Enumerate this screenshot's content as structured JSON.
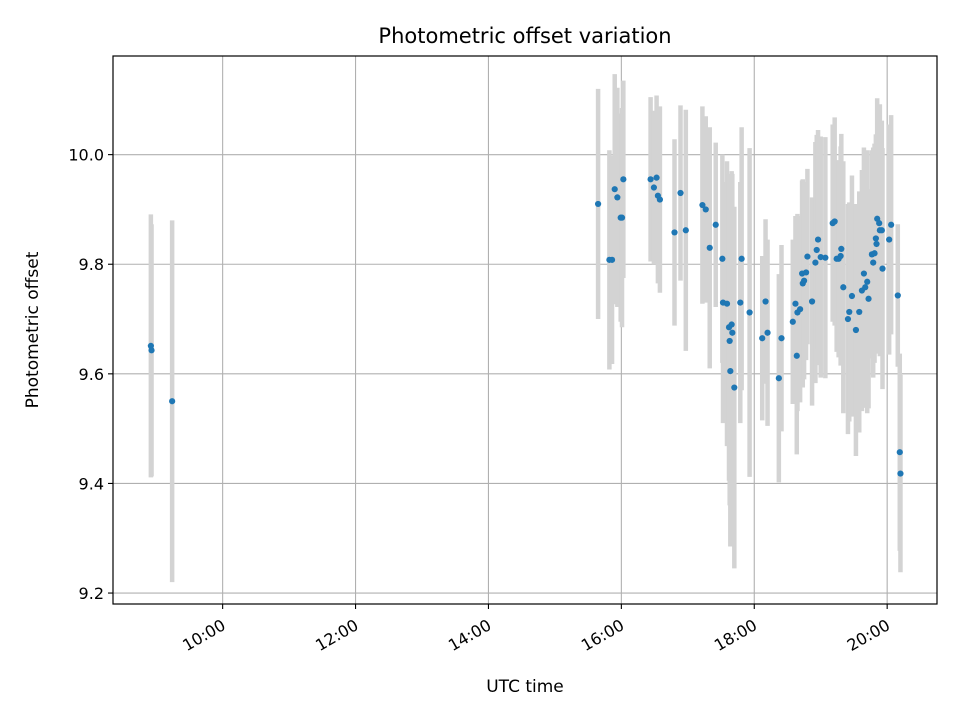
{
  "chart_data": {
    "type": "scatter",
    "title": "Photometric offset variation",
    "xlabel": "UTC time",
    "ylabel": "Photometric offset",
    "x_axis": "time_hours",
    "xlim": [
      8.35,
      20.75
    ],
    "ylim": [
      9.18,
      10.18
    ],
    "x_ticks": [
      10,
      12,
      14,
      16,
      18,
      20
    ],
    "x_tick_labels": [
      "10:00",
      "12:00",
      "14:00",
      "16:00",
      "18:00",
      "20:00"
    ],
    "y_ticks": [
      9.2,
      9.4,
      9.6,
      9.8,
      10.0
    ],
    "y_tick_labels": [
      "9.2",
      "9.4",
      "9.6",
      "9.8",
      "10.0"
    ],
    "grid": true,
    "colors": {
      "points": "#1f77b4",
      "errorbars": "#d3d3d3",
      "grid": "#b0b0b0"
    },
    "series": [
      {
        "columns": [
          "time_h",
          "offset",
          "err"
        ],
        "points": [
          [
            8.92,
            9.651,
            0.24
          ],
          [
            8.93,
            9.643,
            0.23
          ],
          [
            9.24,
            9.55,
            0.33
          ],
          [
            15.65,
            9.91,
            0.21
          ],
          [
            15.82,
            9.808,
            0.2
          ],
          [
            15.86,
            9.808,
            0.19
          ],
          [
            15.9,
            9.937,
            0.21
          ],
          [
            15.94,
            9.922,
            0.2
          ],
          [
            15.99,
            9.885,
            0.19
          ],
          [
            16.01,
            9.885,
            0.2
          ],
          [
            16.03,
            9.955,
            0.18
          ],
          [
            16.44,
            9.955,
            0.15
          ],
          [
            16.49,
            9.94,
            0.14
          ],
          [
            16.53,
            9.958,
            0.15
          ],
          [
            16.55,
            9.925,
            0.16
          ],
          [
            16.58,
            9.918,
            0.17
          ],
          [
            16.8,
            9.858,
            0.17
          ],
          [
            16.89,
            9.93,
            0.16
          ],
          [
            16.97,
            9.862,
            0.22
          ],
          [
            17.22,
            9.908,
            0.18
          ],
          [
            17.27,
            9.9,
            0.17
          ],
          [
            17.33,
            9.83,
            0.22
          ],
          [
            17.42,
            9.872,
            0.15
          ],
          [
            17.52,
            9.81,
            0.19
          ],
          [
            17.53,
            9.73,
            0.22
          ],
          [
            17.59,
            9.728,
            0.26
          ],
          [
            17.62,
            9.685,
            0.28
          ],
          [
            17.63,
            9.66,
            0.3
          ],
          [
            17.64,
            9.605,
            0.32
          ],
          [
            17.66,
            9.69,
            0.28
          ],
          [
            17.67,
            9.675,
            0.29
          ],
          [
            17.7,
            9.575,
            0.33
          ],
          [
            17.79,
            9.73,
            0.22
          ],
          [
            17.81,
            9.81,
            0.24
          ],
          [
            17.93,
            9.712,
            0.3
          ],
          [
            18.12,
            9.665,
            0.15
          ],
          [
            18.17,
            9.732,
            0.15
          ],
          [
            18.2,
            9.675,
            0.17
          ],
          [
            18.37,
            9.592,
            0.19
          ],
          [
            18.41,
            9.665,
            0.17
          ],
          [
            18.58,
            9.695,
            0.15
          ],
          [
            18.62,
            9.728,
            0.16
          ],
          [
            18.64,
            9.633,
            0.18
          ],
          [
            18.65,
            9.712,
            0.18
          ],
          [
            18.69,
            9.718,
            0.17
          ],
          [
            18.72,
            9.783,
            0.17
          ],
          [
            18.73,
            9.765,
            0.19
          ],
          [
            18.75,
            9.77,
            0.18
          ],
          [
            18.78,
            9.785,
            0.16
          ],
          [
            18.8,
            9.814,
            0.16
          ],
          [
            18.87,
            9.732,
            0.19
          ],
          [
            18.92,
            9.803,
            0.22
          ],
          [
            18.94,
            9.826,
            0.21
          ],
          [
            18.96,
            9.845,
            0.2
          ],
          [
            19.0,
            9.813,
            0.22
          ],
          [
            19.07,
            9.812,
            0.22
          ],
          [
            19.18,
            9.875,
            0.18
          ],
          [
            19.21,
            9.878,
            0.19
          ],
          [
            19.24,
            9.81,
            0.17
          ],
          [
            19.27,
            9.81,
            0.18
          ],
          [
            19.3,
            9.815,
            0.2
          ],
          [
            19.31,
            9.828,
            0.21
          ],
          [
            19.34,
            9.758,
            0.23
          ],
          [
            19.41,
            9.7,
            0.21
          ],
          [
            19.43,
            9.713,
            0.2
          ],
          [
            19.47,
            9.742,
            0.22
          ],
          [
            19.53,
            9.68,
            0.23
          ],
          [
            19.58,
            9.713,
            0.22
          ],
          [
            19.62,
            9.752,
            0.22
          ],
          [
            19.65,
            9.783,
            0.23
          ],
          [
            19.67,
            9.758,
            0.22
          ],
          [
            19.7,
            9.768,
            0.24
          ],
          [
            19.72,
            9.737,
            0.2
          ],
          [
            19.77,
            9.818,
            0.19
          ],
          [
            19.79,
            9.803,
            0.21
          ],
          [
            19.81,
            9.82,
            0.2
          ],
          [
            19.83,
            9.847,
            0.19
          ],
          [
            19.84,
            9.837,
            0.2
          ],
          [
            19.85,
            9.883,
            0.22
          ],
          [
            19.88,
            9.875,
            0.21
          ],
          [
            19.89,
            9.862,
            0.23
          ],
          [
            19.92,
            9.862,
            0.2
          ],
          [
            19.93,
            9.792,
            0.22
          ],
          [
            20.03,
            9.845,
            0.21
          ],
          [
            20.06,
            9.872,
            0.2
          ],
          [
            20.16,
            9.743,
            0.13
          ],
          [
            20.19,
            9.457,
            0.18
          ],
          [
            20.2,
            9.418,
            0.18
          ]
        ]
      }
    ]
  }
}
